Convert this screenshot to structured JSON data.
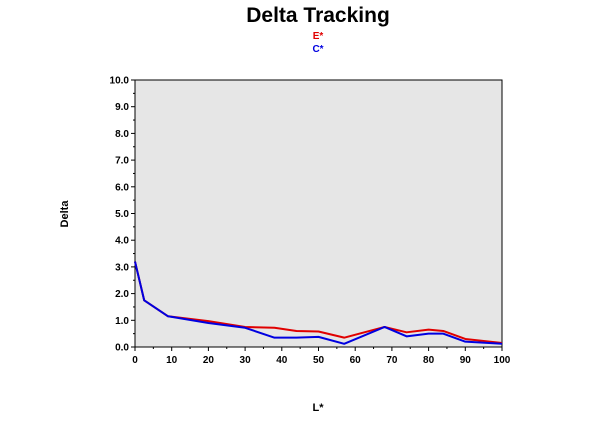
{
  "chart_data": {
    "type": "line",
    "title": "Delta Tracking",
    "xlabel": "L*",
    "ylabel": "Delta",
    "xlim": [
      0,
      100
    ],
    "ylim": [
      0,
      10
    ],
    "x_ticks": [
      "0",
      "10",
      "20",
      "30",
      "40",
      "50",
      "60",
      "70",
      "80",
      "90",
      "100"
    ],
    "y_ticks": [
      "0.0",
      "1.0",
      "2.0",
      "3.0",
      "4.0",
      "5.0",
      "6.0",
      "7.0",
      "8.0",
      "9.0",
      "10.0"
    ],
    "grid": false,
    "legend_position": "top-center",
    "plot_background": "#e6e6e6",
    "series": [
      {
        "name": "E*",
        "color": "#e00000",
        "points": [
          [
            0,
            3.2
          ],
          [
            2.5,
            1.75
          ],
          [
            9,
            1.15
          ],
          [
            20,
            0.97
          ],
          [
            30,
            0.75
          ],
          [
            38,
            0.72
          ],
          [
            44,
            0.6
          ],
          [
            50,
            0.58
          ],
          [
            57,
            0.35
          ],
          [
            68,
            0.75
          ],
          [
            74,
            0.55
          ],
          [
            80,
            0.65
          ],
          [
            84,
            0.6
          ],
          [
            90,
            0.3
          ],
          [
            100,
            0.15
          ]
        ]
      },
      {
        "name": "C*",
        "color": "#0000e0",
        "points": [
          [
            0,
            3.2
          ],
          [
            2.5,
            1.75
          ],
          [
            9,
            1.15
          ],
          [
            20,
            0.9
          ],
          [
            30,
            0.72
          ],
          [
            38,
            0.35
          ],
          [
            44,
            0.35
          ],
          [
            50,
            0.38
          ],
          [
            57,
            0.12
          ],
          [
            68,
            0.75
          ],
          [
            74,
            0.4
          ],
          [
            80,
            0.5
          ],
          [
            84,
            0.5
          ],
          [
            90,
            0.2
          ],
          [
            100,
            0.12
          ]
        ]
      }
    ]
  }
}
